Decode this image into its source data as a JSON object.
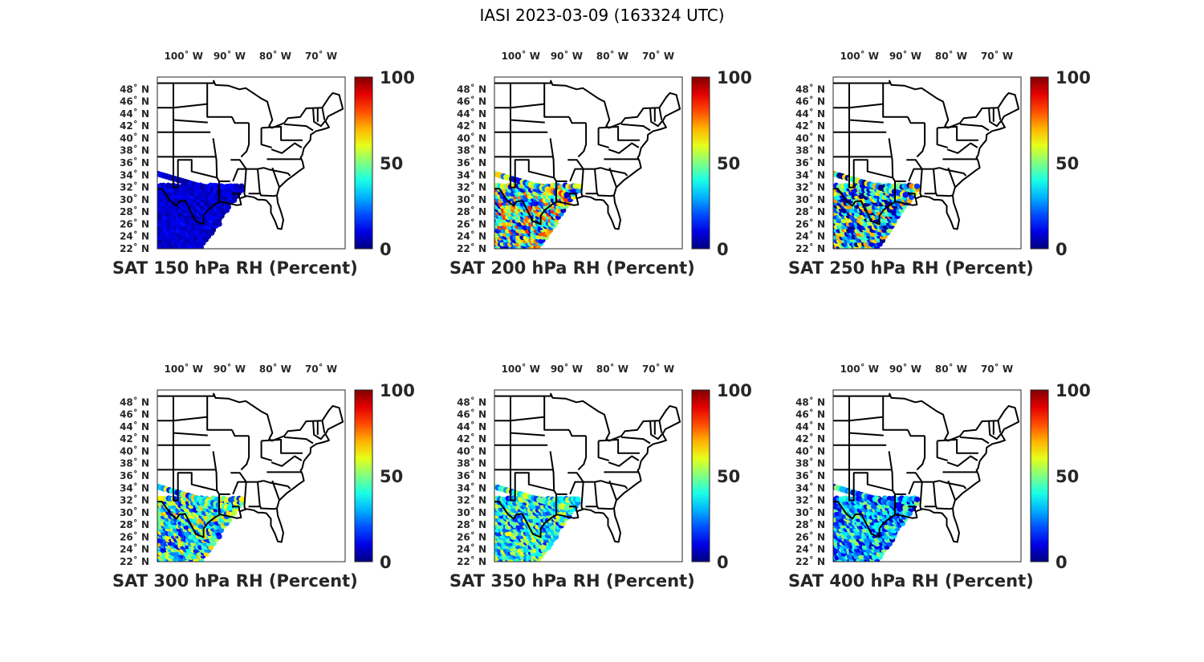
{
  "figure": {
    "title": "IASI 2023-03-09 (163324 UTC)"
  },
  "axes": {
    "lon_ticks": [
      "100˚ W",
      "90˚ W",
      "80˚ W",
      "70˚ W"
    ],
    "lon_values": [
      100,
      90,
      80,
      70
    ],
    "lat_ticks": [
      "48˚ N",
      "46˚ N",
      "44˚ N",
      "42˚ N",
      "40˚ N",
      "38˚ N",
      "36˚ N",
      "34˚ N",
      "32˚ N",
      "30˚ N",
      "28˚ N",
      "26˚ N",
      "24˚ N",
      "22˚ N"
    ],
    "lat_values": [
      48,
      46,
      44,
      42,
      40,
      38,
      36,
      34,
      32,
      30,
      28,
      26,
      24,
      22
    ],
    "lon_range": [
      -107.5,
      -66.5
    ],
    "lat_range": [
      22,
      50
    ]
  },
  "colorbar": {
    "colormap": "jet",
    "ticks": [
      "100",
      "50",
      "0"
    ],
    "range": [
      0,
      100
    ]
  },
  "panels": [
    {
      "id": "p150",
      "title": "SAT 150 hPa RH (Percent)",
      "level_hpa": 150,
      "rh_mean": 8,
      "rh_spread": 6
    },
    {
      "id": "p200",
      "title": "SAT 200 hPa RH (Percent)",
      "level_hpa": 200,
      "rh_mean": 45,
      "rh_spread": 40
    },
    {
      "id": "p250",
      "title": "SAT 250 hPa RH (Percent)",
      "level_hpa": 250,
      "rh_mean": 35,
      "rh_spread": 40
    },
    {
      "id": "p300",
      "title": "SAT 300 hPa RH (Percent)",
      "level_hpa": 300,
      "rh_mean": 40,
      "rh_spread": 30
    },
    {
      "id": "p350",
      "title": "SAT 350 hPa RH (Percent)",
      "level_hpa": 350,
      "rh_mean": 38,
      "rh_spread": 25
    },
    {
      "id": "p400",
      "title": "SAT 400 hPa RH (Percent)",
      "level_hpa": 400,
      "rh_mean": 30,
      "rh_spread": 25
    }
  ],
  "chart_data": {
    "type": "scatter",
    "title": "IASI 2023-03-09 (163324 UTC)",
    "xlabel": "",
    "ylabel": "",
    "xlim": [
      -107.5,
      -66.5
    ],
    "ylim": [
      22,
      50
    ],
    "colorbar_range": [
      0,
      100
    ],
    "series": [
      {
        "name": "SAT 150 hPa RH (Percent)"
      },
      {
        "name": "SAT 200 hPa RH (Percent)"
      },
      {
        "name": "SAT 250 hPa RH (Percent)"
      },
      {
        "name": "SAT 300 hPa RH (Percent)"
      },
      {
        "name": "SAT 350 hPa RH (Percent)"
      },
      {
        "name": "SAT 400 hPa RH (Percent)"
      }
    ]
  }
}
